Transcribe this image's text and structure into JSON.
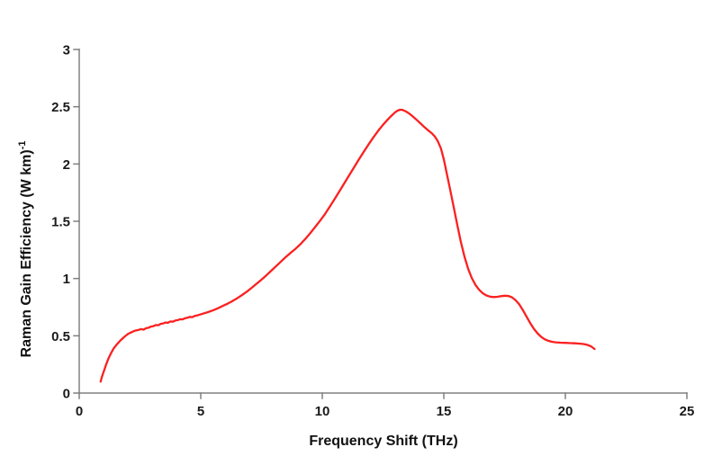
{
  "chart_data": {
    "type": "line",
    "title": "",
    "xlabel": "Frequency Shift (THz)",
    "ylabel": "Raman Gain Efficiency (W km)",
    "ylabel_superscript": "-1",
    "xlim": [
      0,
      25
    ],
    "ylim": [
      0,
      3
    ],
    "x_ticks": {
      "values": [
        0,
        5,
        10,
        15,
        20,
        25
      ],
      "labels": [
        "0",
        "5",
        "10",
        "15",
        "20",
        "25"
      ]
    },
    "y_ticks": {
      "values": [
        0,
        0.5,
        1,
        1.5,
        2,
        2.5,
        3
      ],
      "labels": [
        "0",
        "0.5",
        "1",
        "1.5",
        "2",
        "2.5",
        "3"
      ]
    },
    "grid": false,
    "legend": "none",
    "background": "#ffffff",
    "axis_color": "#808080",
    "tick_label_color": "#1a1a1a",
    "series": [
      {
        "name": "Raman gain efficiency spectrum",
        "color": "#fb2020",
        "line_width": 2.3,
        "points": [
          [
            0.88,
            0.1
          ],
          [
            0.92,
            0.13
          ],
          [
            0.97,
            0.165
          ],
          [
            1.03,
            0.2
          ],
          [
            1.1,
            0.245
          ],
          [
            1.2,
            0.3
          ],
          [
            1.3,
            0.345
          ],
          [
            1.42,
            0.39
          ],
          [
            1.55,
            0.425
          ],
          [
            1.7,
            0.46
          ],
          [
            1.85,
            0.49
          ],
          [
            2.0,
            0.515
          ],
          [
            2.15,
            0.532
          ],
          [
            2.3,
            0.545
          ],
          [
            2.45,
            0.552
          ],
          [
            2.55,
            0.558
          ],
          [
            2.65,
            0.554
          ],
          [
            2.75,
            0.566
          ],
          [
            2.85,
            0.57
          ],
          [
            2.95,
            0.58
          ],
          [
            3.05,
            0.584
          ],
          [
            3.15,
            0.594
          ],
          [
            3.25,
            0.592
          ],
          [
            3.35,
            0.604
          ],
          [
            3.45,
            0.608
          ],
          [
            3.55,
            0.616
          ],
          [
            3.65,
            0.614
          ],
          [
            3.75,
            0.625
          ],
          [
            3.85,
            0.623
          ],
          [
            3.95,
            0.633
          ],
          [
            4.05,
            0.637
          ],
          [
            4.15,
            0.645
          ],
          [
            4.25,
            0.643
          ],
          [
            4.35,
            0.653
          ],
          [
            4.45,
            0.657
          ],
          [
            4.55,
            0.665
          ],
          [
            4.65,
            0.663
          ],
          [
            4.75,
            0.673
          ],
          [
            4.85,
            0.677
          ],
          [
            4.95,
            0.685
          ],
          [
            5.05,
            0.69
          ],
          [
            5.15,
            0.697
          ],
          [
            5.3,
            0.707
          ],
          [
            5.5,
            0.722
          ],
          [
            5.7,
            0.74
          ],
          [
            5.9,
            0.76
          ],
          [
            6.1,
            0.78
          ],
          [
            6.3,
            0.803
          ],
          [
            6.5,
            0.828
          ],
          [
            6.7,
            0.856
          ],
          [
            6.9,
            0.886
          ],
          [
            7.1,
            0.92
          ],
          [
            7.3,
            0.955
          ],
          [
            7.5,
            0.99
          ],
          [
            7.7,
            1.028
          ],
          [
            7.9,
            1.068
          ],
          [
            8.1,
            1.108
          ],
          [
            8.3,
            1.148
          ],
          [
            8.5,
            1.188
          ],
          [
            8.7,
            1.225
          ],
          [
            8.9,
            1.26
          ],
          [
            9.1,
            1.3
          ],
          [
            9.3,
            1.345
          ],
          [
            9.5,
            1.395
          ],
          [
            9.7,
            1.448
          ],
          [
            9.9,
            1.502
          ],
          [
            10.1,
            1.56
          ],
          [
            10.3,
            1.625
          ],
          [
            10.5,
            1.692
          ],
          [
            10.7,
            1.76
          ],
          [
            10.9,
            1.83
          ],
          [
            11.1,
            1.9
          ],
          [
            11.3,
            1.968
          ],
          [
            11.5,
            2.038
          ],
          [
            11.7,
            2.105
          ],
          [
            11.9,
            2.17
          ],
          [
            12.1,
            2.232
          ],
          [
            12.3,
            2.29
          ],
          [
            12.5,
            2.343
          ],
          [
            12.7,
            2.39
          ],
          [
            12.85,
            2.422
          ],
          [
            13.0,
            2.452
          ],
          [
            13.1,
            2.466
          ],
          [
            13.2,
            2.474
          ],
          [
            13.3,
            2.472
          ],
          [
            13.45,
            2.458
          ],
          [
            13.6,
            2.437
          ],
          [
            13.75,
            2.41
          ],
          [
            13.9,
            2.382
          ],
          [
            14.05,
            2.352
          ],
          [
            14.2,
            2.322
          ],
          [
            14.35,
            2.295
          ],
          [
            14.5,
            2.27
          ],
          [
            14.62,
            2.243
          ],
          [
            14.75,
            2.2
          ],
          [
            14.88,
            2.135
          ],
          [
            15.0,
            2.04
          ],
          [
            15.12,
            1.92
          ],
          [
            15.25,
            1.785
          ],
          [
            15.4,
            1.63
          ],
          [
            15.55,
            1.47
          ],
          [
            15.7,
            1.32
          ],
          [
            15.85,
            1.19
          ],
          [
            16.0,
            1.085
          ],
          [
            16.15,
            1.005
          ],
          [
            16.3,
            0.945
          ],
          [
            16.45,
            0.902
          ],
          [
            16.6,
            0.872
          ],
          [
            16.75,
            0.852
          ],
          [
            16.9,
            0.842
          ],
          [
            17.05,
            0.838
          ],
          [
            17.2,
            0.84
          ],
          [
            17.35,
            0.846
          ],
          [
            17.5,
            0.85
          ],
          [
            17.65,
            0.848
          ],
          [
            17.8,
            0.836
          ],
          [
            17.95,
            0.812
          ],
          [
            18.1,
            0.775
          ],
          [
            18.25,
            0.725
          ],
          [
            18.4,
            0.668
          ],
          [
            18.55,
            0.612
          ],
          [
            18.7,
            0.562
          ],
          [
            18.85,
            0.522
          ],
          [
            19.0,
            0.492
          ],
          [
            19.15,
            0.47
          ],
          [
            19.3,
            0.456
          ],
          [
            19.45,
            0.448
          ],
          [
            19.6,
            0.443
          ],
          [
            19.8,
            0.44
          ],
          [
            20.0,
            0.438
          ],
          [
            20.2,
            0.436
          ],
          [
            20.4,
            0.434
          ],
          [
            20.6,
            0.431
          ],
          [
            20.75,
            0.428
          ],
          [
            20.9,
            0.421
          ],
          [
            21.05,
            0.408
          ],
          [
            21.2,
            0.385
          ]
        ]
      }
    ]
  }
}
